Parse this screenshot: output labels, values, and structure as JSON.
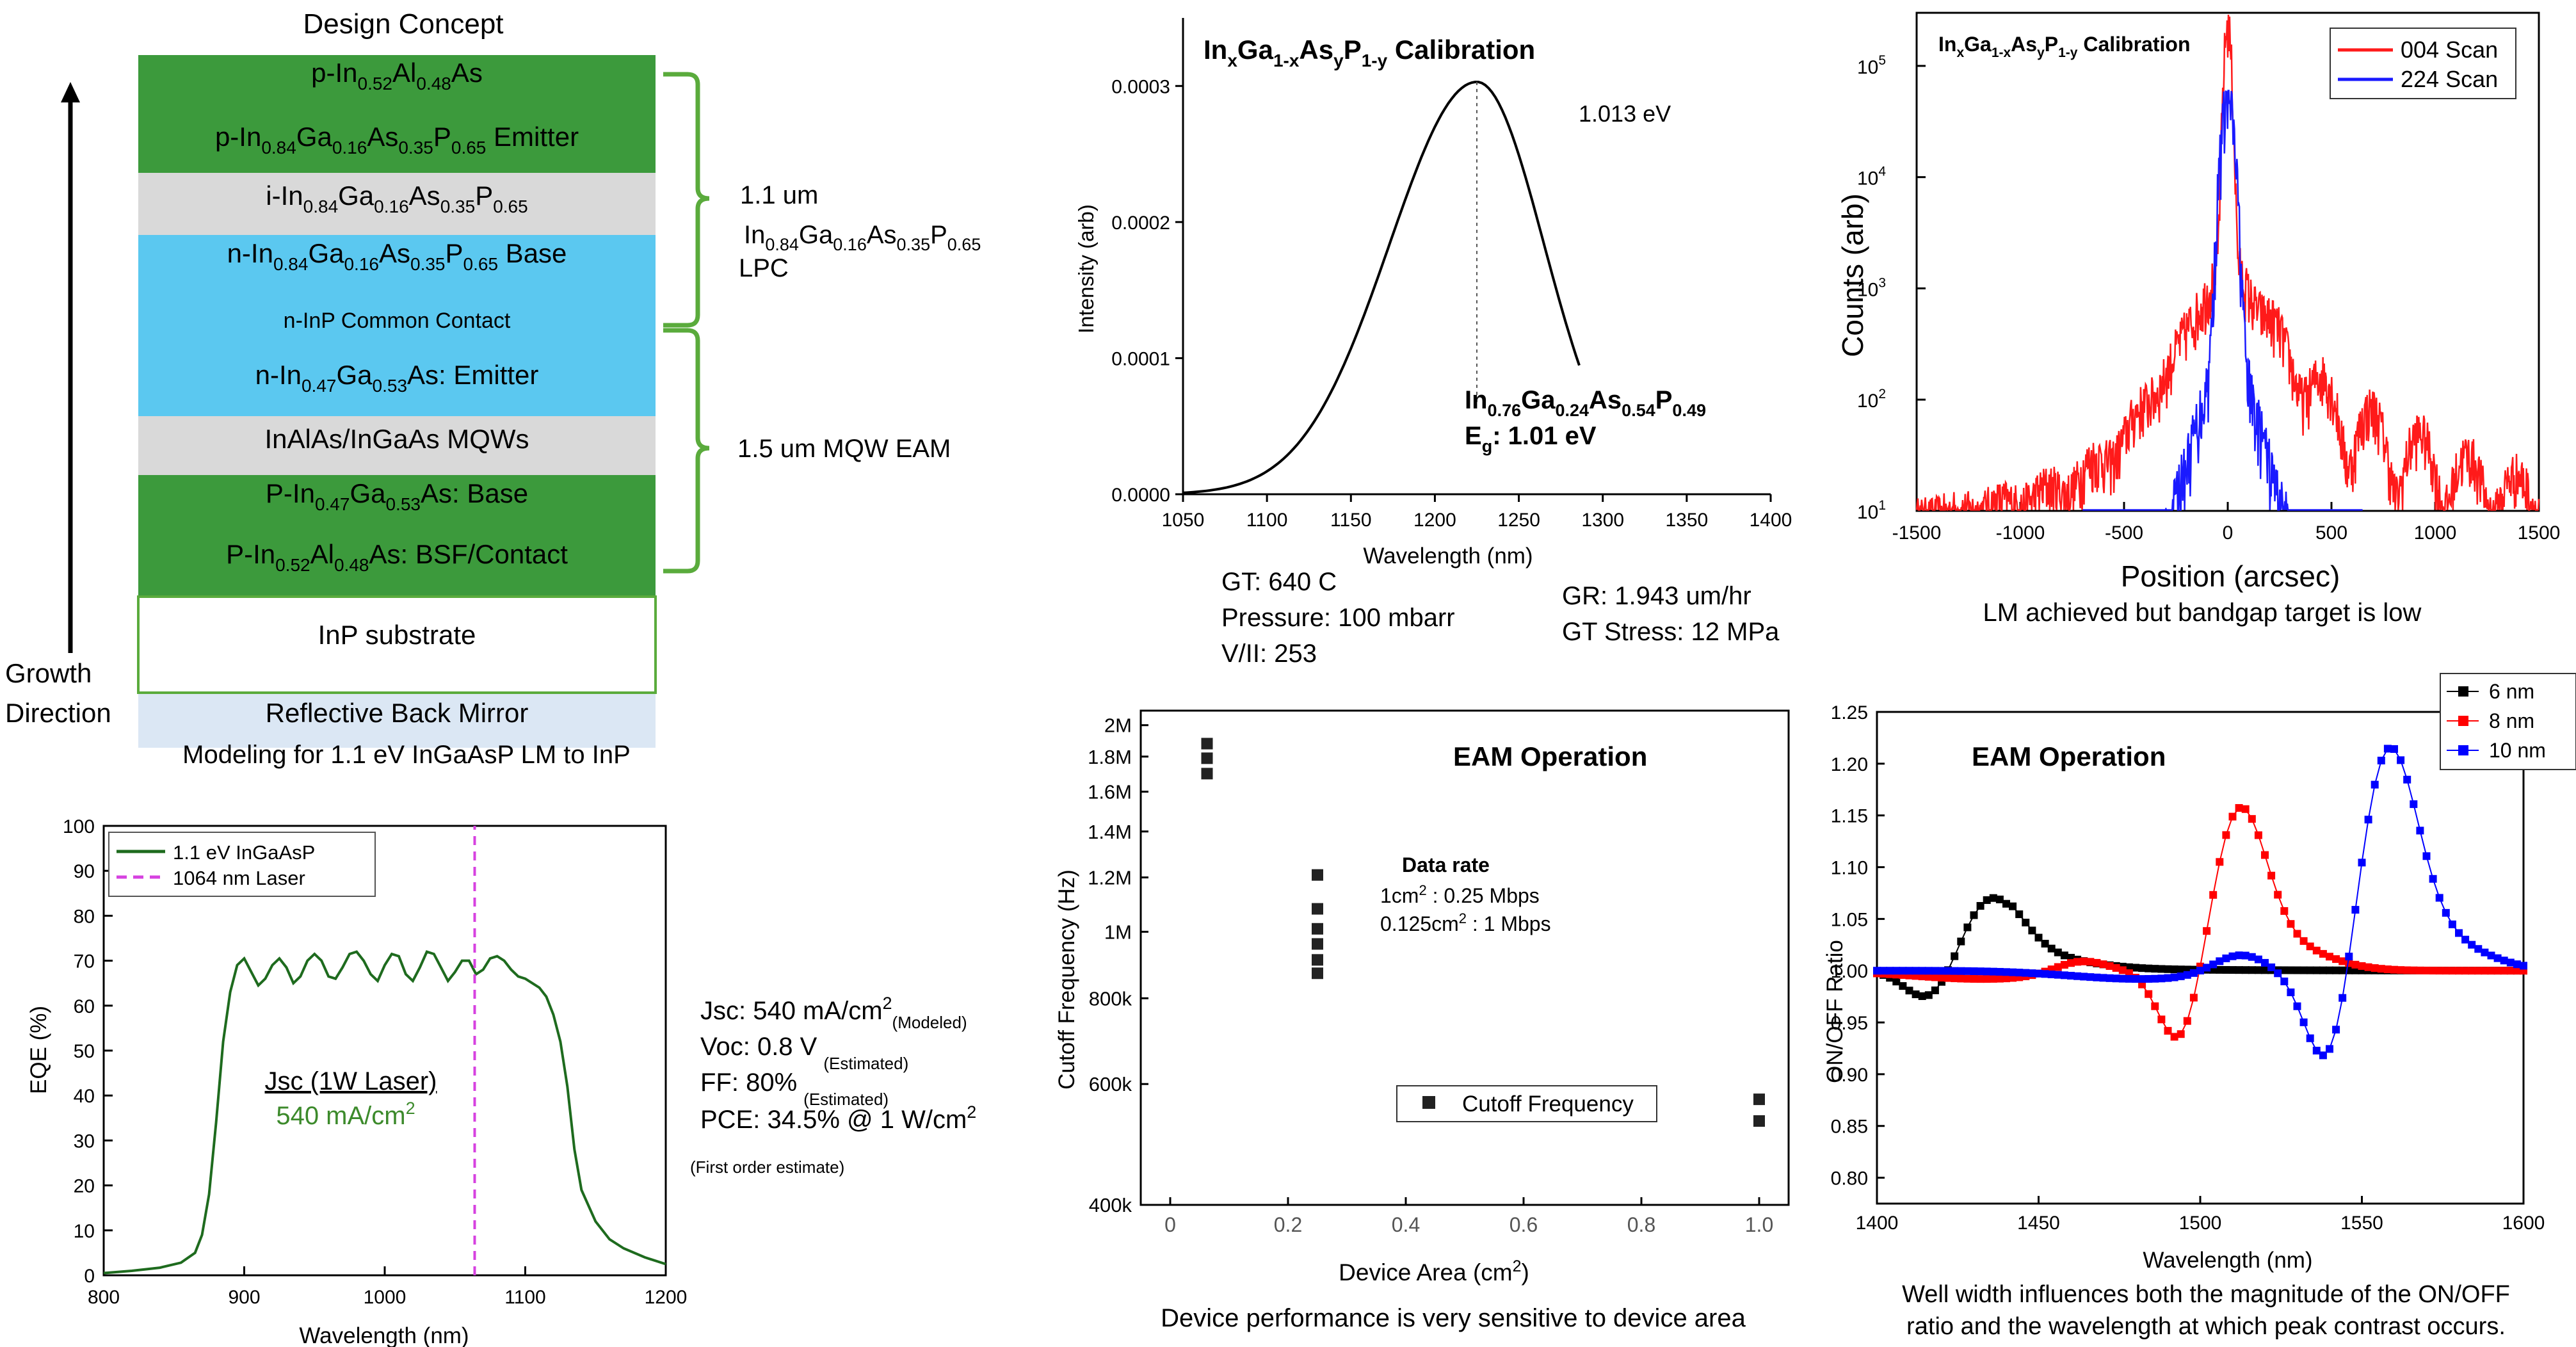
{
  "design": {
    "title": "Design Concept",
    "layers": [
      {
        "pre": "p-In",
        "s1": "0.52",
        "m1": "Al",
        "s2": "0.48",
        "post": "As",
        "color": "#3c9a3c"
      },
      {
        "pre": "p-In",
        "s1": "0.84",
        "m1": "Ga",
        "s2": "0.16",
        "m2": "As",
        "s3": "0.35",
        "m3": "P",
        "s4": "0.65",
        "post": " Emitter",
        "color": "#3c9a3c"
      },
      {
        "pre": "i-In",
        "s1": "0.84",
        "m1": "Ga",
        "s2": "0.16",
        "m2": "As",
        "s3": "0.35",
        "m3": "P",
        "s4": "0.65",
        "post": "",
        "color": "#d9d9d9"
      },
      {
        "pre": "n-In",
        "s1": "0.84",
        "m1": "Ga",
        "s2": "0.16",
        "m2": "As",
        "s3": "0.35",
        "m3": "P",
        "s4": "0.65",
        "post": " Base",
        "sub": "n-InP Common Contact",
        "color": "#5bc8f0"
      },
      {
        "pre": "n-In",
        "s1": "0.47",
        "m1": "Ga",
        "s2": "0.53",
        "post": "As: Emitter",
        "color": "#5bc8f0"
      },
      {
        "pre": "InAlAs/InGaAs MQWs",
        "color": "#d9d9d9"
      },
      {
        "pre": "P-In",
        "s1": "0.47",
        "m1": "Ga",
        "s2": "0.53",
        "post": "As: Base",
        "color": "#3c9a3c"
      },
      {
        "pre": "P-In",
        "s1": "0.52",
        "m1": "Al",
        "s2": "0.48",
        "post": "As: BSF/Contact",
        "color": "#3c9a3c"
      },
      {
        "pre": "InP substrate",
        "color": "#ffffff"
      },
      {
        "pre": "Reflective Back Mirror",
        "color": "#dbe7f4"
      }
    ],
    "bracket1": {
      "line1": "1.1 um",
      "f_pre": "In",
      "f_s1": "0.84",
      "f_m1": "Ga",
      "f_s2": "0.16",
      "f_m2": "As",
      "f_s3": "0.35",
      "f_m3": "P",
      "f_s4": "0.65",
      "line3": "LPC"
    },
    "bracket2": "1.5 um MQW EAM",
    "growth": [
      "Growth",
      "Direction"
    ],
    "bracket_color": "#5aab3c"
  },
  "eqe_notes": {
    "jsc": "Jsc: 540 mA/cm",
    "jsc_sup": "2",
    "jsc_sub": "(Modeled)",
    "voc": "Voc: 0.8 V",
    "voc_sub": "(Estimated)",
    "ff": "FF: 80%",
    "ff_sub": "(Estimated)",
    "pce": "PCE: 34.5% @ 1 W/cm",
    "pce_sup": "2",
    "note": "(First order estimate)"
  },
  "pl_notes": {
    "gt": "GT: 640 C",
    "pressure": "Pressure: 100 mbarr",
    "v3": "V/II: 253",
    "gr": "GR: 1.943 um/hr",
    "stress": "GT Stress: 12 MPa"
  },
  "captions": {
    "xrd": "LM achieved but bandgap target is  low",
    "cutoff": "Device performance is very sensitive to device area",
    "eam1": "Well width influences both the magnitude of the ON/OFF",
    "eam2": "ratio and the wavelength at which peak contrast occurs."
  },
  "chart_data": [
    {
      "id": "eqe",
      "type": "line",
      "title": "Modeling for 1.1 eV InGaAsP LM to InP",
      "xlabel": "Wavelength (nm)",
      "ylabel": "EQE (%)",
      "xlim": [
        800,
        1200
      ],
      "ylim": [
        0,
        100
      ],
      "xticks": [
        800,
        900,
        1000,
        1100,
        1200
      ],
      "yticks": [
        0,
        10,
        20,
        30,
        40,
        50,
        60,
        70,
        80,
        90,
        100
      ],
      "series": [
        {
          "name": "1.1 eV InGaAsP",
          "color": "#1e6b1e",
          "x": [
            800,
            820,
            840,
            855,
            865,
            870,
            875,
            880,
            885,
            890,
            895,
            900,
            905,
            910,
            915,
            920,
            925,
            930,
            935,
            940,
            945,
            950,
            955,
            960,
            965,
            970,
            975,
            980,
            985,
            990,
            995,
            1000,
            1005,
            1010,
            1015,
            1020,
            1025,
            1030,
            1035,
            1040,
            1045,
            1050,
            1055,
            1060,
            1065,
            1070,
            1075,
            1080,
            1085,
            1090,
            1095,
            1100,
            1105,
            1110,
            1115,
            1120,
            1125,
            1130,
            1135,
            1140,
            1150,
            1160,
            1170,
            1185,
            1200
          ],
          "y": [
            0.5,
            1,
            1.7,
            2.8,
            5,
            9,
            18,
            34,
            52,
            63,
            69,
            70.5,
            67.5,
            64.5,
            66,
            69,
            70.5,
            68.5,
            65,
            66.5,
            70,
            71.5,
            70,
            66.5,
            66,
            68.5,
            71.5,
            72,
            70,
            67,
            65.5,
            69,
            71.5,
            71,
            67,
            65.5,
            68.5,
            72,
            71.5,
            68.5,
            65.5,
            67.5,
            70,
            70,
            67,
            68,
            70.5,
            71,
            70,
            68,
            66.5,
            66,
            65,
            64,
            62,
            58,
            52,
            42,
            28,
            19,
            12,
            8,
            6,
            4,
            2.5
          ]
        },
        {
          "name": "1064 nm Laser",
          "color": "#d642e0",
          "x": [
            1064,
            1064
          ],
          "y": [
            0,
            100
          ],
          "dashed": true
        }
      ],
      "annotation": {
        "line1": "Jsc (1W Laser)",
        "line2": "540 mA/cm",
        "sup": "2",
        "color": "#3c8a2b"
      }
    },
    {
      "id": "pl",
      "type": "line",
      "title": {
        "pre": "In",
        "sub1": "x",
        "m1": "Ga",
        "sub2": "1-x",
        "m2": "As",
        "sub3": "y",
        "m3": "P",
        "sub4": "1-y",
        "post": " Calibration"
      },
      "xlabel": "Wavelength (nm)",
      "ylabel": "Intensity (arb)",
      "xlim": [
        1050,
        1400
      ],
      "ylim": [
        0,
        0.00035
      ],
      "xticks": [
        1050,
        1100,
        1150,
        1200,
        1250,
        1300,
        1350,
        1400
      ],
      "yticks": [
        0,
        0.0001,
        0.0002,
        0.0003
      ],
      "ytick_labels": [
        "0.0000",
        "0.0001",
        "0.0002",
        "0.0003"
      ],
      "peak": {
        "x": 1225,
        "y": 0.000303,
        "label": "1.013 eV"
      },
      "fit_line2": "E",
      "fit_line2_sub": "g",
      "fit_line2_post": ": 1.01 eV",
      "fit": {
        "pre": "In",
        "s1": "0.76",
        "m1": "Ga",
        "s2": "0.24",
        "m2": "As",
        "s3": "0.54",
        "m3": "P",
        "s4": "0.49"
      }
    },
    {
      "id": "xrd",
      "type": "line",
      "title": {
        "pre": "In",
        "sub1": "x",
        "m1": "Ga",
        "sub2": "1-x",
        "m2": "As",
        "sub3": "y",
        "m3": "P",
        "sub4": "1-y",
        "post": " Calibration"
      },
      "xlabel": "Position (arcsec)",
      "ylabel": "Counts (arb)",
      "xlim": [
        -1500,
        1500
      ],
      "ylim": [
        10,
        300000
      ],
      "yscale": "log",
      "xticks": [
        -1500,
        -1000,
        -500,
        0,
        500,
        1000,
        1500
      ],
      "yticks": [
        10,
        100,
        1000,
        10000,
        100000
      ],
      "ytick_base": "10",
      "ytick_exp": [
        "1",
        "2",
        "3",
        "4",
        "5"
      ],
      "series": [
        {
          "name": "004 Scan",
          "color": "#ff1a1a"
        },
        {
          "name": "224 Scan",
          "color": "#1a1aff"
        }
      ]
    },
    {
      "id": "cutoff",
      "type": "scatter",
      "title": "EAM Operation",
      "xlabel": "Device Area (cm",
      "xlabel_sup": "2",
      "xlabel_post": ")",
      "ylabel": "Cutoff Frequency (Hz)",
      "xlim": [
        -0.05,
        1.05
      ],
      "ylim": [
        400000,
        2100000
      ],
      "yscale": "log",
      "xticks": [
        0,
        0.2,
        0.4,
        0.6,
        0.8,
        1.0
      ],
      "xtick_labels": [
        "0",
        "0.2",
        "0.4",
        "0.6",
        "0.8",
        "1.0"
      ],
      "yticks": [
        400000,
        600000,
        800000,
        1000000,
        1200000,
        1400000,
        1600000,
        1800000,
        2000000
      ],
      "ytick_labels": [
        "400k",
        "600k",
        "800k",
        "1M",
        "1.2M",
        "1.4M",
        "1.6M",
        "1.8M",
        "2M"
      ],
      "series": [
        {
          "name": "Cutoff Frequency",
          "color": "#222222",
          "x": [
            0.0625,
            0.0625,
            0.0625,
            0.25,
            0.25,
            0.25,
            0.25,
            0.25,
            0.25,
            1.0,
            1.0
          ],
          "y": [
            1880000,
            1790000,
            1700000,
            1210000,
            1080000,
            1010000,
            960000,
            910000,
            870000,
            570000,
            530000
          ]
        }
      ],
      "data_rate": {
        "title": "Data rate",
        "l1": "1cm",
        "l1sup": "2",
        "l1post": " : 0.25 Mbps",
        "l2": "0.125cm",
        "l2sup": "2",
        "l2post": " : 1 Mbps"
      }
    },
    {
      "id": "eam",
      "type": "line",
      "title": "EAM Operation",
      "xlabel": "Wavelength (nm)",
      "ylabel": "ON/OFF Ratio",
      "xlim": [
        1400,
        1600
      ],
      "ylim": [
        0.775,
        1.25
      ],
      "xticks": [
        1400,
        1450,
        1500,
        1550,
        1600
      ],
      "yticks": [
        0.8,
        0.85,
        0.9,
        0.95,
        1.0,
        1.05,
        1.1,
        1.15,
        1.2,
        1.25
      ],
      "ytick_labels": [
        "0.80",
        "0.85",
        "0.90",
        "0.95",
        "1.00",
        "1.05",
        "1.10",
        "1.15",
        "1.20",
        "1.25"
      ],
      "series": [
        {
          "name": "6 nm",
          "color": "#000000",
          "type": "dispersive",
          "center": 1426,
          "amp": 0.062,
          "w": 7.5
        },
        {
          "name": "8 nm",
          "color": "#ff0000",
          "type": "dispersive",
          "center": 1503,
          "amp": 0.139,
          "w": 6.5,
          "bump_x": 1463,
          "bump_a": 0.012
        },
        {
          "name": "10 nm",
          "color": "#0000ff",
          "type": "dispersive",
          "center": 1549,
          "amp": 0.19,
          "w": 7.0,
          "bump_x": 1512,
          "bump_a": 0.018
        }
      ]
    }
  ]
}
